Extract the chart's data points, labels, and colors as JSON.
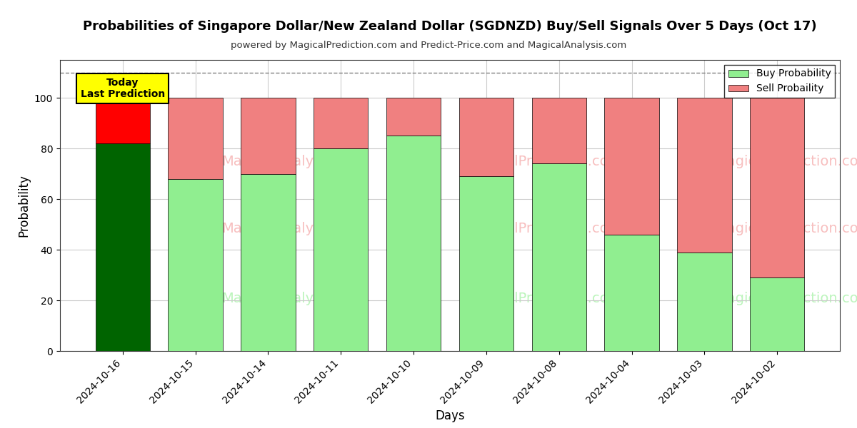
{
  "title": "Probabilities of Singapore Dollar/New Zealand Dollar (SGDNZD) Buy/Sell Signals Over 5 Days (Oct 17)",
  "subtitle": "powered by MagicalPrediction.com and Predict-Price.com and MagicalAnalysis.com",
  "xlabel": "Days",
  "ylabel": "Probability",
  "dates": [
    "2024-10-16",
    "2024-10-15",
    "2024-10-14",
    "2024-10-11",
    "2024-10-10",
    "2024-10-09",
    "2024-10-08",
    "2024-10-04",
    "2024-10-03",
    "2024-10-02"
  ],
  "buy_values": [
    82,
    68,
    70,
    80,
    85,
    69,
    74,
    46,
    39,
    29
  ],
  "sell_values": [
    18,
    32,
    30,
    20,
    15,
    31,
    26,
    54,
    61,
    71
  ],
  "first_bar_buy_color": "#006400",
  "first_bar_sell_color": "#FF0000",
  "other_buy_color": "#90EE90",
  "other_sell_color": "#F08080",
  "bar_edge_color": "#000000",
  "today_box_color": "#FFFF00",
  "today_text": "Today\nLast Prediction",
  "legend_buy_label": "Buy Probability",
  "legend_sell_label": "Sell Probaility",
  "ylim": [
    0,
    115
  ],
  "yticks": [
    0,
    20,
    40,
    60,
    80,
    100
  ],
  "dashed_line_y": 110,
  "background_color": "#ffffff",
  "grid_color": "#cccccc",
  "bar_width": 0.75
}
